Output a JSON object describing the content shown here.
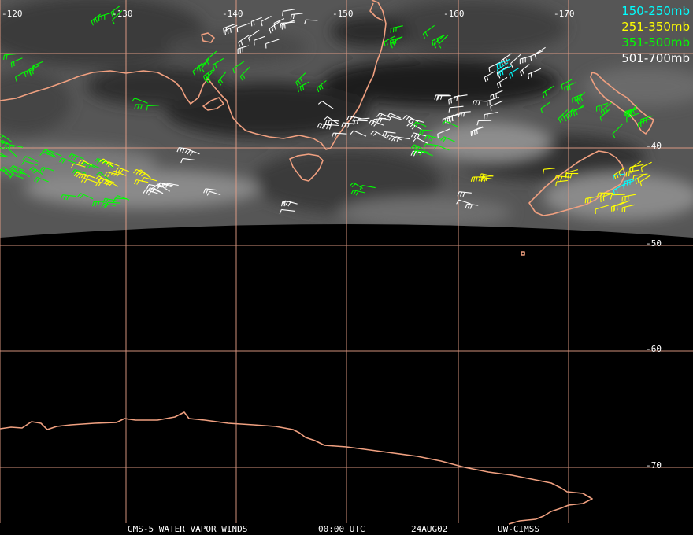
{
  "map": {
    "graticule_color": "#e8a088",
    "coast_color": "#f0a080",
    "longitude_labels": [
      "-120",
      "-130",
      "-140",
      "-150",
      "-160",
      "-170"
    ],
    "latitude_labels": [
      "-40",
      "-50",
      "-60",
      "-70"
    ]
  },
  "legend": [
    {
      "label": "150-250mb",
      "color": "#00ffff"
    },
    {
      "label": "251-350mb",
      "color": "#ffff00"
    },
    {
      "label": "351-500mb",
      "color": "#00ff00"
    },
    {
      "label": "501-700mb",
      "color": "#ffffff"
    }
  ],
  "footer": {
    "satellite": "GMS-5 WATER VAPOR WINDS",
    "time": "00:00 UTC",
    "date": "24AUG02",
    "source": "UW-CIMSS"
  }
}
